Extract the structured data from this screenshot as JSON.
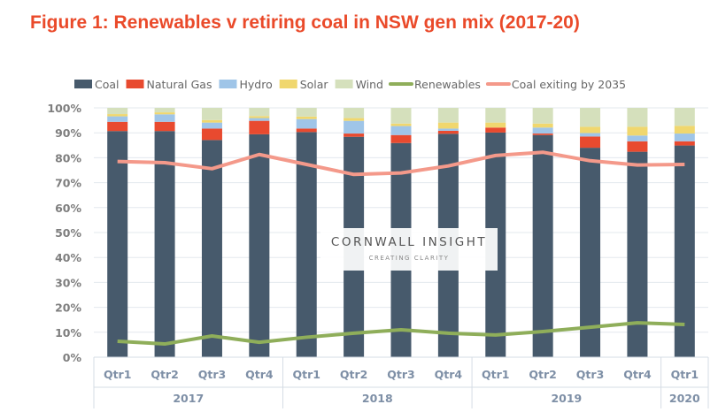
{
  "chart_data": {
    "type": "bar",
    "stacked": true,
    "title": "Figure 1: Renewables v retiring coal in NSW gen mix (2017-20)",
    "categories": [
      "Qtr1",
      "Qtr2",
      "Qtr3",
      "Qtr4",
      "Qtr1",
      "Qtr2",
      "Qtr3",
      "Qtr4",
      "Qtr1",
      "Qtr2",
      "Qtr3",
      "Qtr4",
      "Qtr1"
    ],
    "groups": [
      {
        "label": "2017",
        "count": 4
      },
      {
        "label": "2018",
        "count": 4
      },
      {
        "label": "2019",
        "count": 4
      },
      {
        "label": "2020",
        "count": 1
      }
    ],
    "ylim": [
      0,
      100
    ],
    "yticks": [
      "0%",
      "10%",
      "20%",
      "30%",
      "40%",
      "50%",
      "60%",
      "70%",
      "80%",
      "90%",
      "100%"
    ],
    "legend_position": "top",
    "series": [
      {
        "name": "Coal",
        "kind": "bar",
        "color": "#475a6c",
        "values": [
          90.7,
          90.7,
          87.1,
          89.4,
          90.3,
          88.4,
          85.9,
          89.6,
          90.1,
          89.1,
          84.0,
          82.4,
          84.9
        ]
      },
      {
        "name": "Natural Gas",
        "kind": "bar",
        "color": "#e84a2f",
        "values": [
          3.7,
          3.7,
          4.6,
          5.4,
          1.4,
          1.3,
          3.2,
          1.2,
          2.0,
          0.6,
          4.5,
          4.2,
          1.7
        ]
      },
      {
        "name": "Hydro",
        "kind": "bar",
        "color": "#9fc5e8",
        "values": [
          2.2,
          3.0,
          2.4,
          1.1,
          3.8,
          5.1,
          3.6,
          0.9,
          0.0,
          2.4,
          1.4,
          2.3,
          3.1
        ]
      },
      {
        "name": "Solar",
        "kind": "bar",
        "color": "#f0d76e",
        "values": [
          0.9,
          0.8,
          1.0,
          0.8,
          1.0,
          1.1,
          1.0,
          2.4,
          2.0,
          1.6,
          2.5,
          3.5,
          3.1
        ]
      },
      {
        "name": "Wind",
        "kind": "bar",
        "color": "#d5e0bc",
        "values": [
          2.5,
          1.8,
          4.9,
          3.3,
          3.5,
          4.1,
          6.3,
          5.9,
          5.9,
          6.3,
          7.6,
          7.6,
          7.2
        ]
      },
      {
        "name": "Renewables",
        "kind": "line",
        "color": "#8fae5a",
        "values": [
          6.4,
          5.3,
          8.5,
          6.0,
          8.0,
          9.6,
          11.0,
          9.6,
          8.9,
          10.3,
          12.0,
          13.8,
          13.1
        ]
      },
      {
        "name": "Coal exiting by 2035",
        "kind": "line",
        "color": "#f4998a",
        "values": [
          78.5,
          78.0,
          75.6,
          81.3,
          77.3,
          73.3,
          73.9,
          76.7,
          80.9,
          82.2,
          78.8,
          77.1,
          77.3
        ]
      }
    ]
  },
  "watermark": {
    "name": "CORNWALL INSIGHT",
    "tagline": "CREATING CLARITY"
  }
}
